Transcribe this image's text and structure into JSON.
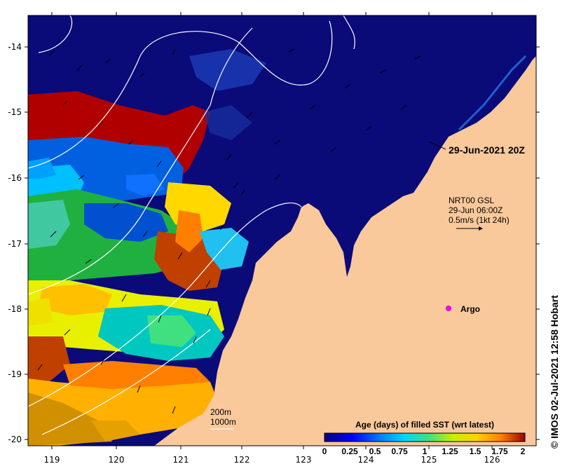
{
  "map": {
    "x_ticks": [
      "119",
      "120",
      "121",
      "122",
      "123",
      "124",
      "125",
      "126"
    ],
    "y_ticks": [
      "-14",
      "-15",
      "-16",
      "-17",
      "-18",
      "-19",
      "-20"
    ],
    "colors": {
      "land": "#f9c99b",
      "deep": "#0a0a78",
      "axis": "#000000"
    }
  },
  "annotations": {
    "date_label": "29-Jun-2021 20Z",
    "vector_title": "NRT00 GSL",
    "vector_time": "29-Jun 06:00Z",
    "vector_scale": "0.5m/s (1kt 24h)",
    "argo_label": "Argo",
    "contour_200": "200m",
    "contour_1000": "1000m"
  },
  "colorbar": {
    "title": "Age (days) of filled SST (wrt latest)",
    "ticks": [
      "0",
      "0.25",
      "0.5",
      "0.75",
      "1",
      "1.25",
      "1.5",
      "1.75",
      "2"
    ],
    "stops": [
      "#00007f",
      "#0000ff",
      "#0080ff",
      "#00d8ff",
      "#40e080",
      "#c8f000",
      "#ffd000",
      "#ff8000",
      "#a00000"
    ]
  },
  "credit": "IMOS 02-Jul-2021 12:58 Hobart"
}
